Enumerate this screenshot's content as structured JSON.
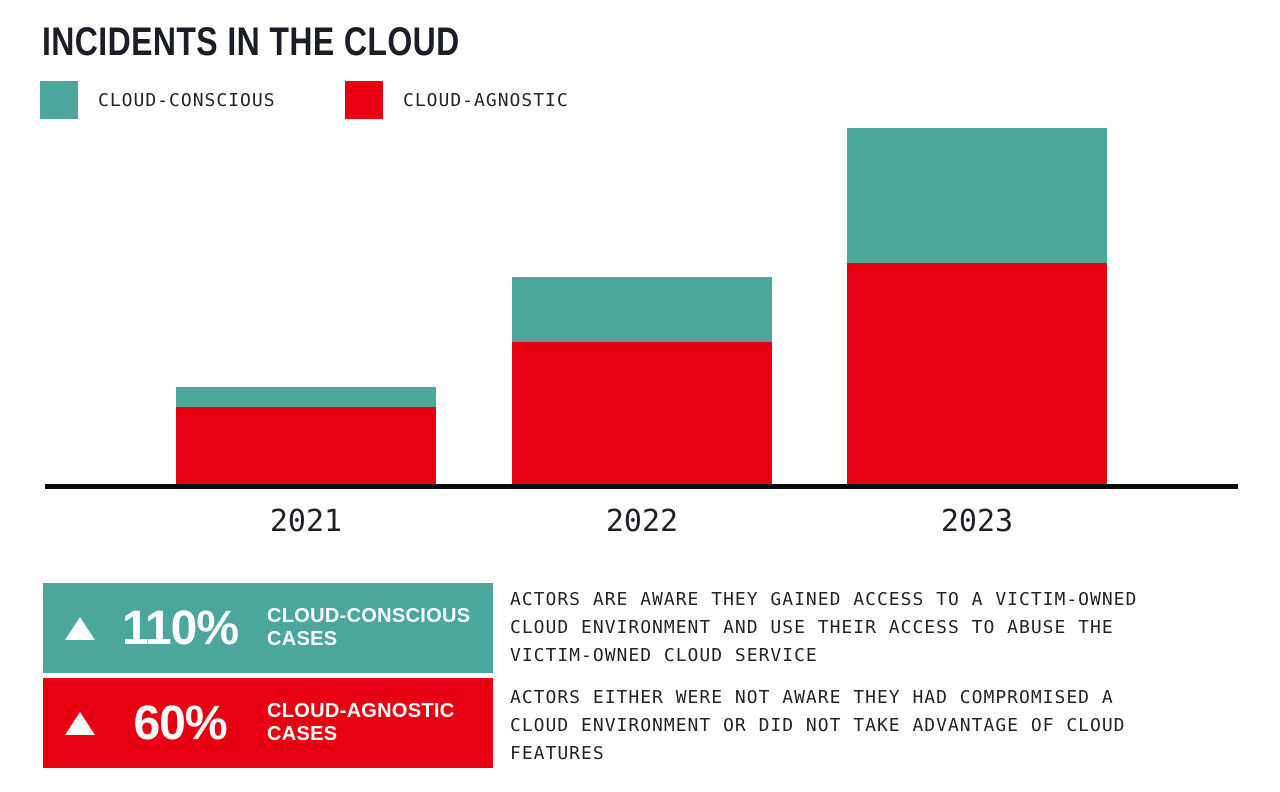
{
  "title": "INCIDENTS IN THE CLOUD",
  "colors": {
    "cloud_conscious": "#4BA79C",
    "cloud_agnostic": "#E60012",
    "axis": "#0B0B0B",
    "text": "#22242A"
  },
  "legend": {
    "items": [
      {
        "label": "CLOUD-CONSCIOUS",
        "color": "#4BA79C"
      },
      {
        "label": "CLOUD-AGNOSTIC",
        "color": "#E60012"
      }
    ]
  },
  "chart_data": {
    "type": "bar",
    "stacked": true,
    "title": "INCIDENTS IN THE CLOUD",
    "categories": [
      "2021",
      "2022",
      "2023"
    ],
    "series": [
      {
        "name": "CLOUD-CONSCIOUS",
        "color": "#4BA79C",
        "values": [
          20,
          65,
          135
        ]
      },
      {
        "name": "CLOUD-AGNOSTIC",
        "color": "#E60012",
        "values": [
          77,
          142,
          221
        ]
      }
    ],
    "value_units": "relative height (no y-axis scale shown in figure)",
    "xlabel": "",
    "ylabel": "",
    "grid": false,
    "legend_position": "top-left",
    "annotations": [
      "CLOUD-CONSCIOUS cases up 110% (2022 to 2023)",
      "CLOUD-AGNOSTIC cases up 60% (2022 to 2023)"
    ]
  },
  "callouts": [
    {
      "icon": "triangle-up",
      "delta": "110%",
      "label_lines": [
        "CLOUD-CONSCIOUS",
        "CASES"
      ],
      "color": "#4BA79C",
      "description_lines": [
        "ACTORS ARE AWARE THEY GAINED ACCESS TO A VICTIM-OWNED",
        "CLOUD ENVIRONMENT AND USE THEIR ACCESS TO ABUSE THE",
        "VICTIM-OWNED CLOUD SERVICE"
      ]
    },
    {
      "icon": "triangle-up",
      "delta": "60%",
      "label_lines": [
        "CLOUD-AGNOSTIC",
        "CASES"
      ],
      "color": "#E60012",
      "description_lines": [
        "ACTORS EITHER WERE NOT AWARE THEY HAD COMPROMISED A",
        "CLOUD ENVIRONMENT OR DID NOT TAKE ADVANTAGE OF CLOUD",
        "FEATURES"
      ]
    }
  ]
}
